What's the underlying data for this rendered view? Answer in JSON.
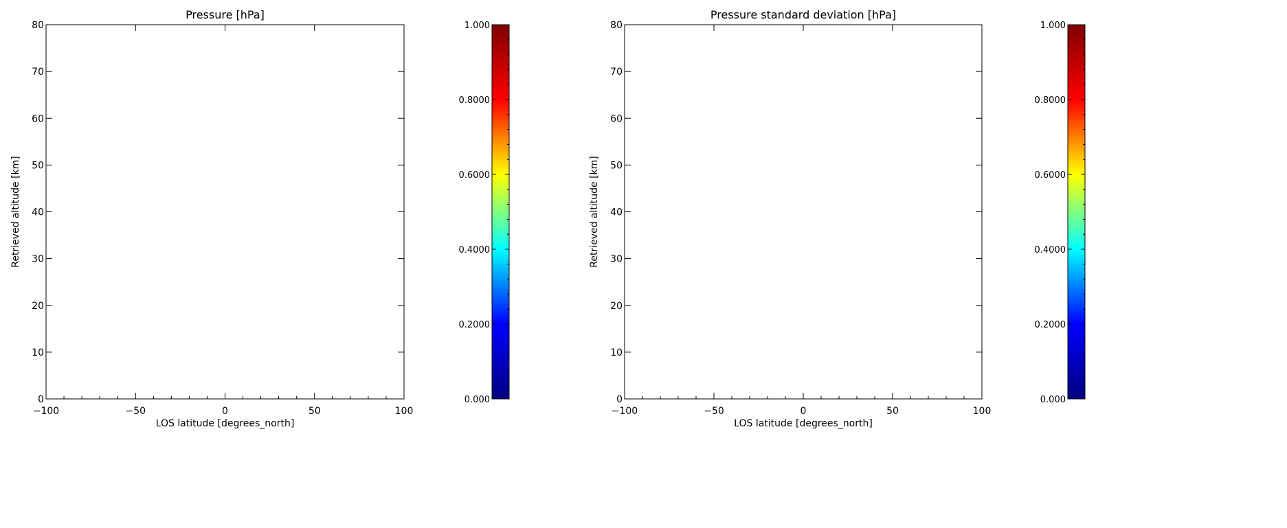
{
  "chart_data": [
    {
      "type": "heatmap",
      "title": "Pressure [hPa]",
      "xlabel": "LOS latitude [degrees_north]",
      "ylabel": "Retrieved altitude [km]",
      "xlim": [
        -100,
        100
      ],
      "ylim": [
        0,
        80
      ],
      "xticks": [
        -100,
        -50,
        0,
        50,
        100
      ],
      "xtick_labels": [
        "−100",
        "−50",
        "0",
        "50",
        "100"
      ],
      "yticks": [
        0,
        10,
        20,
        30,
        40,
        50,
        60,
        70,
        80
      ],
      "ytick_labels": [
        "0",
        "10",
        "20",
        "30",
        "40",
        "50",
        "60",
        "70",
        "80"
      ],
      "values": [],
      "colorbar": {
        "range": [
          0,
          1
        ],
        "ticks": [
          0,
          0.2,
          0.4,
          0.6,
          0.8,
          1.0
        ],
        "tick_labels": [
          "0.000",
          "0.2000",
          "0.4000",
          "0.6000",
          "0.8000",
          "1.000"
        ],
        "colormap": [
          "#000080",
          "#0000ff",
          "#00ffff",
          "#ffff00",
          "#ff0000",
          "#800000"
        ]
      }
    },
    {
      "type": "heatmap",
      "title": "Pressure standard deviation [hPa]",
      "xlabel": "LOS latitude [degrees_north]",
      "ylabel": "Retrieved altitude [km]",
      "xlim": [
        -100,
        100
      ],
      "ylim": [
        0,
        80
      ],
      "xticks": [
        -100,
        -50,
        0,
        50,
        100
      ],
      "xtick_labels": [
        "−100",
        "−50",
        "0",
        "50",
        "100"
      ],
      "yticks": [
        0,
        10,
        20,
        30,
        40,
        50,
        60,
        70,
        80
      ],
      "ytick_labels": [
        "0",
        "10",
        "20",
        "30",
        "40",
        "50",
        "60",
        "70",
        "80"
      ],
      "values": [],
      "colorbar": {
        "range": [
          0,
          1
        ],
        "ticks": [
          0,
          0.2,
          0.4,
          0.6,
          0.8,
          1.0
        ],
        "tick_labels": [
          "0.000",
          "0.2000",
          "0.4000",
          "0.6000",
          "0.8000",
          "1.000"
        ],
        "colormap": [
          "#000080",
          "#0000ff",
          "#00ffff",
          "#ffff00",
          "#ff0000",
          "#800000"
        ]
      }
    }
  ]
}
